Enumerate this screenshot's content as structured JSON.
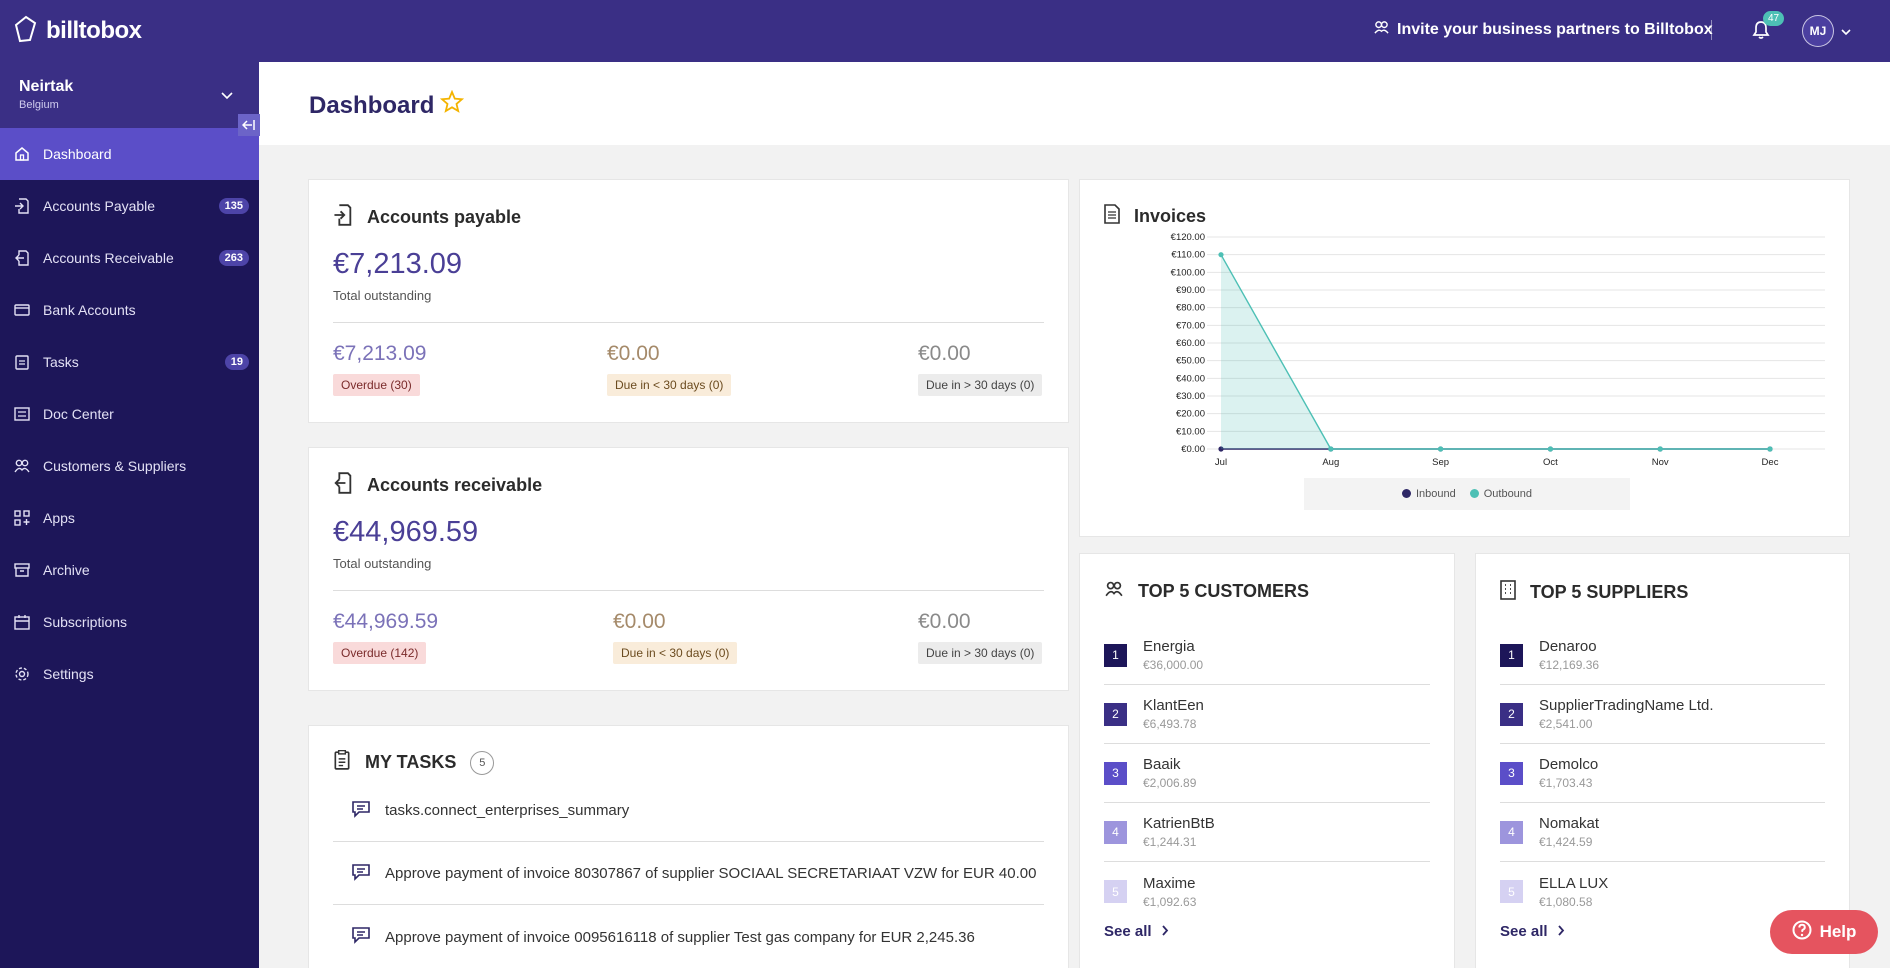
{
  "app": {
    "logo": "billtobox"
  },
  "topbar": {
    "invite": "Invite your business partners to Billtobox",
    "notifications_count": "47",
    "avatar_initials": "MJ"
  },
  "org": {
    "name": "Neirtak",
    "country": "Belgium"
  },
  "sidebar": {
    "items": [
      {
        "label": "Dashboard",
        "icon": "home-icon",
        "count": ""
      },
      {
        "label": "Accounts Payable",
        "icon": "doc-in-icon",
        "count": "135"
      },
      {
        "label": "Accounts Receivable",
        "icon": "doc-out-icon",
        "count": "263"
      },
      {
        "label": "Bank Accounts",
        "icon": "card-icon",
        "count": ""
      },
      {
        "label": "Tasks",
        "icon": "clipboard-icon",
        "count": "19"
      },
      {
        "label": "Doc Center",
        "icon": "doc-center-icon",
        "count": ""
      },
      {
        "label": "Customers & Suppliers",
        "icon": "people-icon",
        "count": ""
      },
      {
        "label": "Apps",
        "icon": "apps-icon",
        "count": ""
      },
      {
        "label": "Archive",
        "icon": "archive-icon",
        "count": ""
      },
      {
        "label": "Subscriptions",
        "icon": "calendar-icon",
        "count": ""
      },
      {
        "label": "Settings",
        "icon": "gear-icon",
        "count": ""
      }
    ]
  },
  "page": {
    "title": "Dashboard"
  },
  "payable": {
    "title": "Accounts payable",
    "total": "€7,213.09",
    "total_label": "Total outstanding",
    "overdue_amount": "€7,213.09",
    "overdue_label": "Overdue (30)",
    "due_lt30_amount": "€0.00",
    "due_lt30_label": "Due in < 30 days (0)",
    "due_gt30_amount": "€0.00",
    "due_gt30_label": "Due in > 30 days (0)"
  },
  "receivable": {
    "title": "Accounts receivable",
    "total": "€44,969.59",
    "total_label": "Total outstanding",
    "overdue_amount": "€44,969.59",
    "overdue_label": "Overdue (142)",
    "due_lt30_amount": "€0.00",
    "due_lt30_label": "Due in < 30 days (0)",
    "due_gt30_amount": "€0.00",
    "due_gt30_label": "Due in > 30 days (0)"
  },
  "tasks": {
    "title": "MY TASKS",
    "count": "5",
    "items": [
      "tasks.connect_enterprises_summary",
      "Approve payment of invoice 80307867 of supplier SOCIAAL SECRETARIAAT VZW for EUR 40.00",
      "Approve payment of invoice 0095616118 of supplier Test gas company for EUR 2,245.36"
    ]
  },
  "invoices": {
    "title": "Invoices"
  },
  "chart_data": {
    "type": "area",
    "title": "Invoices",
    "categories": [
      "Jul",
      "Aug",
      "Sep",
      "Oct",
      "Nov",
      "Dec"
    ],
    "series": [
      {
        "name": "Inbound",
        "color": "#2e2766",
        "values": [
          0,
          0,
          0,
          0,
          0,
          0
        ]
      },
      {
        "name": "Outbound",
        "color": "#4dc0b5",
        "values": [
          110,
          0,
          0,
          0,
          0,
          0
        ]
      }
    ],
    "y_ticks": [
      "€0.00",
      "€10.00",
      "€20.00",
      "€30.00",
      "€40.00",
      "€50.00",
      "€60.00",
      "€70.00",
      "€80.00",
      "€90.00",
      "€100.00",
      "€110.00",
      "€120.00"
    ],
    "ylim": [
      0,
      120
    ],
    "grid": true,
    "legend_position": "bottom"
  },
  "top_customers": {
    "title": "TOP 5 CUSTOMERS",
    "see_all": "See all",
    "items": [
      {
        "rank": "1",
        "name": "Energia",
        "amount": "€36,000.00"
      },
      {
        "rank": "2",
        "name": "KlantEen",
        "amount": "€6,493.78"
      },
      {
        "rank": "3",
        "name": "Baaik",
        "amount": "€2,006.89"
      },
      {
        "rank": "4",
        "name": "KatrienBtB",
        "amount": "€1,244.31"
      },
      {
        "rank": "5",
        "name": "Maxime",
        "amount": "€1,092.63"
      }
    ]
  },
  "top_suppliers": {
    "title": "TOP 5 SUPPLIERS",
    "see_all": "See all",
    "items": [
      {
        "rank": "1",
        "name": "Denaroo",
        "amount": "€12,169.36"
      },
      {
        "rank": "2",
        "name": "SupplierTradingName Ltd.",
        "amount": "€2,541.00"
      },
      {
        "rank": "3",
        "name": "Demolco",
        "amount": "€1,703.43"
      },
      {
        "rank": "4",
        "name": "Nomakat",
        "amount": "€1,424.59"
      },
      {
        "rank": "5",
        "name": "ELLA LUX",
        "amount": "€1,080.58"
      }
    ]
  },
  "help": {
    "label": "Help"
  },
  "colors": {
    "brand": "#3a2f85",
    "sidebar": "#1d1659",
    "active": "#5b4ec8",
    "accent_teal": "#4dc0b5",
    "help": "#e5545f",
    "rank_colors": [
      "#1d1659",
      "#3a2f85",
      "#5b4ec8",
      "#9d95dd",
      "#d5d1f2"
    ]
  }
}
